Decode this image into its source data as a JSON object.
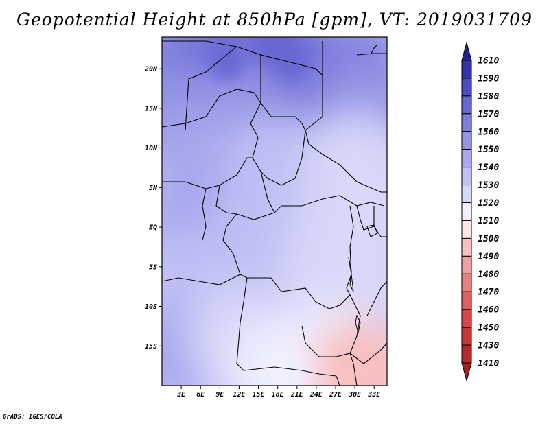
{
  "title": "Geopotential Height at 850hPa [gpm], VT: 2019031709",
  "credit": "GrADS: IGES/COLA",
  "chart_data": {
    "type": "heatmap",
    "title": "Geopotential Height at 850hPa [gpm], VT: 2019031709",
    "xlim": [
      0,
      35
    ],
    "ylim": [
      -20,
      24
    ],
    "x_ticks": [
      {
        "value": 3,
        "label": "3E"
      },
      {
        "value": 6,
        "label": "6E"
      },
      {
        "value": 9,
        "label": "9E"
      },
      {
        "value": 12,
        "label": "12E"
      },
      {
        "value": 15,
        "label": "15E"
      },
      {
        "value": 18,
        "label": "18E"
      },
      {
        "value": 21,
        "label": "21E"
      },
      {
        "value": 24,
        "label": "24E"
      },
      {
        "value": 27,
        "label": "27E"
      },
      {
        "value": 30,
        "label": "30E"
      },
      {
        "value": 33,
        "label": "33E"
      }
    ],
    "y_ticks": [
      {
        "value": 20,
        "label": "20N"
      },
      {
        "value": 15,
        "label": "15N"
      },
      {
        "value": 10,
        "label": "10N"
      },
      {
        "value": 5,
        "label": "5N"
      },
      {
        "value": 0,
        "label": "EQ"
      },
      {
        "value": -5,
        "label": "5S"
      },
      {
        "value": -10,
        "label": "10S"
      },
      {
        "value": -15,
        "label": "15S"
      }
    ],
    "colorbar": {
      "levels": [
        1410,
        1430,
        1450,
        1460,
        1470,
        1480,
        1490,
        1500,
        1510,
        1520,
        1530,
        1540,
        1550,
        1560,
        1570,
        1580,
        1590,
        1610
      ],
      "colors": [
        "#a02020",
        "#b52a2a",
        "#c83838",
        "#d84848",
        "#e06060",
        "#e88080",
        "#f0a0a0",
        "#f8c0c0",
        "#fde6e6",
        "#f0f0ff",
        "#d8d8fa",
        "#c0c0f5",
        "#a8a8ee",
        "#9494e6",
        "#7e7ede",
        "#6868d4",
        "#4c4cc4",
        "#3434aa",
        "#22228e"
      ]
    },
    "field": [
      {
        "lon": 2,
        "lat": 20,
        "value": 1565
      },
      {
        "lon": 10,
        "lat": 21,
        "value": 1572
      },
      {
        "lon": 17,
        "lat": 23,
        "value": 1578
      },
      {
        "lon": 20,
        "lat": 21,
        "value": 1575
      },
      {
        "lon": 31,
        "lat": 20,
        "value": 1568
      },
      {
        "lon": 2,
        "lat": 14,
        "value": 1555
      },
      {
        "lon": 12,
        "lat": 15,
        "value": 1558
      },
      {
        "lon": 24,
        "lat": 15,
        "value": 1560
      },
      {
        "lon": 33,
        "lat": 15,
        "value": 1550
      },
      {
        "lon": 6,
        "lat": 8,
        "value": 1540
      },
      {
        "lon": 18,
        "lat": 8,
        "value": 1535
      },
      {
        "lon": 30,
        "lat": 8,
        "value": 1528
      },
      {
        "lon": 4,
        "lat": 1,
        "value": 1540
      },
      {
        "lon": 16,
        "lat": 0,
        "value": 1535
      },
      {
        "lon": 28,
        "lat": -1,
        "value": 1525
      },
      {
        "lon": 4,
        "lat": -7,
        "value": 1538
      },
      {
        "lon": 14,
        "lat": -8,
        "value": 1530
      },
      {
        "lon": 26,
        "lat": -7,
        "value": 1522
      },
      {
        "lon": 2,
        "lat": -16,
        "value": 1545
      },
      {
        "lon": 12,
        "lat": -14,
        "value": 1528
      },
      {
        "lon": 19,
        "lat": -18,
        "value": 1512
      },
      {
        "lon": 27,
        "lat": -16,
        "value": 1515
      },
      {
        "lon": 31,
        "lat": -18,
        "value": 1495
      }
    ]
  }
}
